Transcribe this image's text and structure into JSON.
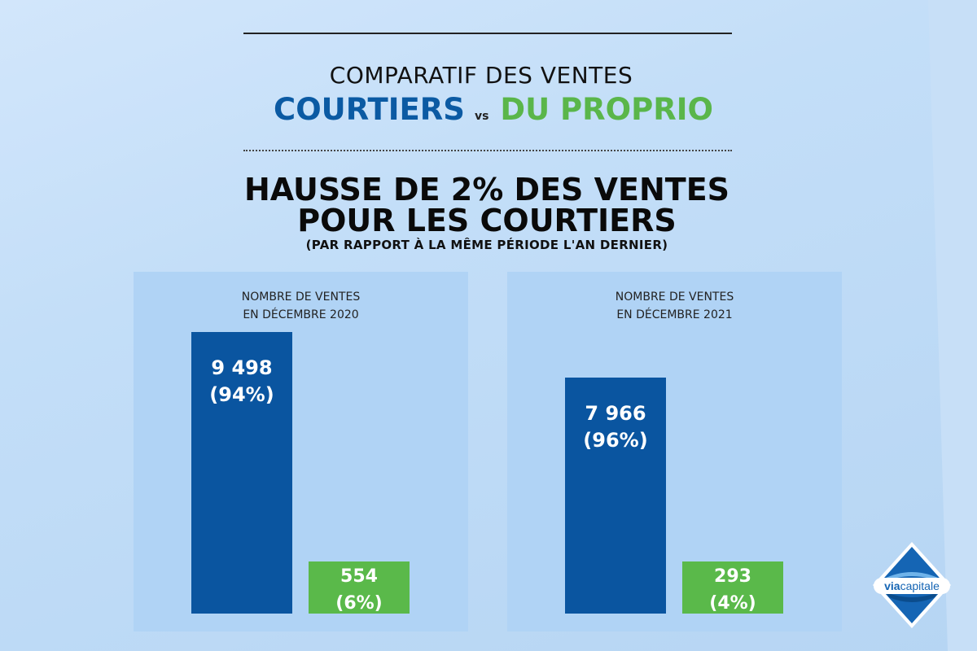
{
  "header": {
    "title_line1": "COMPARATIF DES VENTES",
    "title_courtiers": "COURTIERS",
    "title_vs": "vs",
    "title_proprio": "DU PROPRIO",
    "headline_line1": "HAUSSE DE 2% DES VENTES",
    "headline_line2": "POUR LES COURTIERS",
    "subheadline": "(PAR RAPPORT À LA MÊME PÉRIODE L'AN DERNIER)"
  },
  "colors": {
    "courtiers": "#0a55a0",
    "proprio": "#5ab94a",
    "background": "#bcd9f5",
    "panel": "#b0d3f5"
  },
  "chart_data": [
    {
      "type": "bar",
      "title_line1": "NOMBRE DE VENTES",
      "title_line2": "EN DÉCEMBRE 2020",
      "categories": [
        "COURTIERS",
        "DU PROPRIO"
      ],
      "values": [
        9498,
        554
      ],
      "labels": [
        {
          "value": "9 498",
          "pct": "(94%)"
        },
        {
          "value": "554",
          "pct": "(6%)"
        }
      ],
      "percentages": [
        94,
        6
      ]
    },
    {
      "type": "bar",
      "title_line1": "NOMBRE DE VENTES",
      "title_line2": "EN DÉCEMBRE 2021",
      "categories": [
        "COURTIERS",
        "DU PROPRIO"
      ],
      "values": [
        7966,
        293
      ],
      "labels": [
        {
          "value": "7 966",
          "pct": "(96%)"
        },
        {
          "value": "293",
          "pct": "(4%)"
        }
      ],
      "percentages": [
        96,
        4
      ]
    }
  ],
  "logo": {
    "text_via": "via",
    "text_capitale": "capitale",
    "icon": "viacapitale-diamond-logo"
  }
}
